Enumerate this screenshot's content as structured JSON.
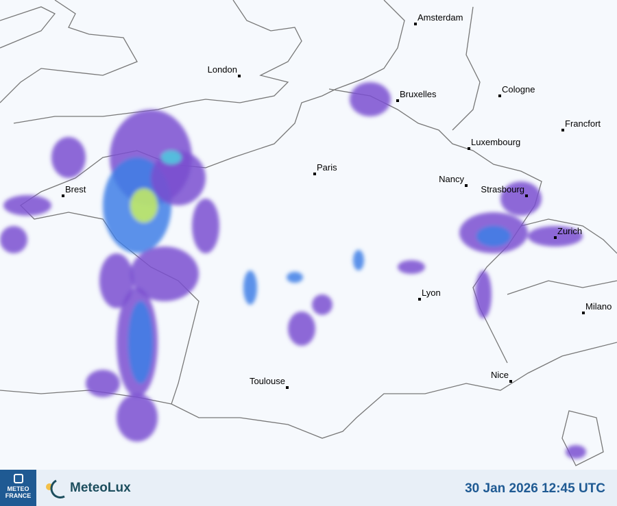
{
  "map": {
    "cities": [
      {
        "name": "Amsterdam"
      },
      {
        "name": "London"
      },
      {
        "name": "Bruxelles"
      },
      {
        "name": "Cologne"
      },
      {
        "name": "Francfort"
      },
      {
        "name": "Luxembourg"
      },
      {
        "name": "Paris"
      },
      {
        "name": "Nancy"
      },
      {
        "name": "Strasbourg"
      },
      {
        "name": "Brest"
      },
      {
        "name": "Zurich"
      },
      {
        "name": "Lyon"
      },
      {
        "name": "Milano"
      },
      {
        "name": "Nice"
      },
      {
        "name": "Toulouse"
      }
    ],
    "colors": {
      "land": "#f6f9fd",
      "border": "#777777",
      "light_precip": "#7a4fd0",
      "moderate_precip": "#3f7fe6",
      "heavy_precip": "#4fd0e0",
      "intense_precip": "#c8f060"
    }
  },
  "footer": {
    "meteofrance_logo": "METEO FRANCE",
    "meteolux_logo": "MeteoLux",
    "timestamp": "30 Jan 2026 12:45 UTC"
  }
}
